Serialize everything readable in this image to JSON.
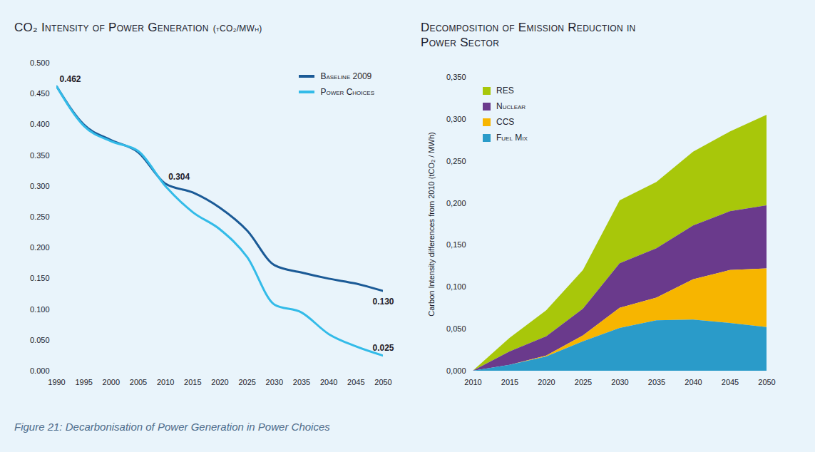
{
  "chart_data": [
    {
      "type": "line",
      "title": "CO₂ Intensity of Power Generation",
      "subtitle": "(tCO₂/MWh)",
      "x": [
        1990,
        1995,
        2000,
        2005,
        2010,
        2015,
        2020,
        2025,
        2030,
        2035,
        2040,
        2045,
        2050
      ],
      "series": [
        {
          "name": "Baseline 2009",
          "color": "#1b5a96",
          "values": [
            0.462,
            0.4,
            0.375,
            0.355,
            0.304,
            0.29,
            0.265,
            0.228,
            0.172,
            0.16,
            0.15,
            0.142,
            0.13
          ]
        },
        {
          "name": "Power Choices",
          "color": "#33bbe8",
          "values": [
            0.462,
            0.398,
            0.373,
            0.357,
            0.3,
            0.258,
            0.23,
            0.185,
            0.108,
            0.095,
            0.06,
            0.04,
            0.025
          ]
        }
      ],
      "annotations": [
        {
          "x": 1990,
          "y": 0.462,
          "text": "0.462"
        },
        {
          "x": 2010,
          "y": 0.304,
          "text": "0.304"
        },
        {
          "x": 2050,
          "y": 0.13,
          "text": "0.130"
        },
        {
          "x": 2050,
          "y": 0.025,
          "text": "0.025"
        }
      ],
      "xlim": [
        1990,
        2050
      ],
      "xticks": [
        1990,
        1995,
        2000,
        2005,
        2010,
        2015,
        2020,
        2025,
        2030,
        2035,
        2040,
        2045,
        2050
      ],
      "ylim": [
        0,
        0.5
      ],
      "yticks": [
        {
          "value": 0,
          "label": "0.000"
        },
        {
          "value": 0.05,
          "label": "0.050"
        },
        {
          "value": 0.1,
          "label": "0.100"
        },
        {
          "value": 0.15,
          "label": "0.150"
        },
        {
          "value": 0.2,
          "label": "0.200"
        },
        {
          "value": 0.25,
          "label": "0.250"
        },
        {
          "value": 0.3,
          "label": "0.300"
        },
        {
          "value": 0.35,
          "label": "0.350"
        },
        {
          "value": 0.4,
          "label": "0.400"
        },
        {
          "value": 0.45,
          "label": "0.450"
        },
        {
          "value": 0.5,
          "label": "0.500"
        }
      ],
      "grid": false,
      "legend": "top-right"
    },
    {
      "type": "area",
      "title": "Decomposition of Emission Reduction in Power Sector",
      "y_label": "Carbon Intensity differences from 2010 (tCO₂ / MWh)",
      "stacked": true,
      "x": [
        2010,
        2015,
        2020,
        2025,
        2030,
        2035,
        2040,
        2045,
        2050
      ],
      "series": [
        {
          "name": "RES",
          "color": "#a8c70a",
          "values": [
            0,
            0.016,
            0.031,
            0.046,
            0.075,
            0.079,
            0.088,
            0.095,
            0.108
          ]
        },
        {
          "name": "Nuclear",
          "color": "#6a3a8c",
          "values": [
            0,
            0.016,
            0.023,
            0.032,
            0.053,
            0.059,
            0.064,
            0.07,
            0.075
          ]
        },
        {
          "name": "CCS",
          "color": "#f7b500",
          "values": [
            0,
            0,
            0.001,
            0.007,
            0.024,
            0.027,
            0.048,
            0.063,
            0.07
          ]
        },
        {
          "name": "Fuel Mix",
          "color": "#2a9bc9",
          "values": [
            0,
            0.007,
            0.017,
            0.035,
            0.051,
            0.06,
            0.061,
            0.057,
            0.052
          ]
        }
      ],
      "xlim": [
        2010,
        2050
      ],
      "xticks": [
        2010,
        2015,
        2020,
        2025,
        2030,
        2035,
        2040,
        2045,
        2050
      ],
      "ylim": [
        0,
        0.35
      ],
      "yticks": [
        {
          "value": 0,
          "label": "0,000"
        },
        {
          "value": 0.05,
          "label": "0,050"
        },
        {
          "value": 0.1,
          "label": "0,100"
        },
        {
          "value": 0.15,
          "label": "0,150"
        },
        {
          "value": 0.2,
          "label": "0,200"
        },
        {
          "value": 0.25,
          "label": "0,250"
        },
        {
          "value": 0.3,
          "label": "0,300"
        },
        {
          "value": 0.35,
          "label": "0,350"
        }
      ],
      "grid": false,
      "legend": "top-left"
    }
  ],
  "caption": "Figure 21: Decarbonisation of Power Generation in Power Choices"
}
